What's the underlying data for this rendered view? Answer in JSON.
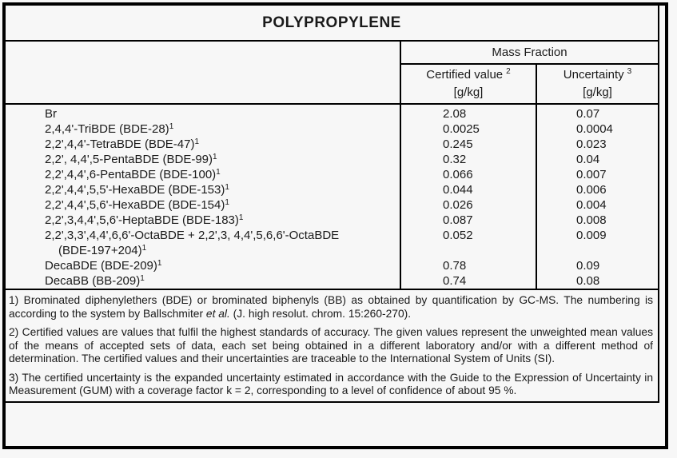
{
  "colors": {
    "background": "#f7f7f7",
    "line": "#000000",
    "text": "#1a1a1a"
  },
  "title": "POLYPROPYLENE",
  "table": {
    "group_header": "Mass Fraction",
    "columns": [
      {
        "label": "Certified value",
        "sup": "2",
        "unit": "[g/kg]"
      },
      {
        "label": "Uncertainty",
        "sup": "3",
        "unit": "[g/kg]"
      }
    ],
    "rows": [
      {
        "name": "Br",
        "sup": "",
        "certified": "2.08",
        "uncertainty": "0.07"
      },
      {
        "name": "2,4,4'-TriBDE (BDE-28)",
        "sup": "1",
        "certified": "0.0025",
        "uncertainty": "0.0004"
      },
      {
        "name": "2,2',4,4'-TetraBDE (BDE-47)",
        "sup": "1",
        "certified": "0.245",
        "uncertainty": "0.023"
      },
      {
        "name": "2,2', 4,4',5-PentaBDE (BDE-99)",
        "sup": "1",
        "certified": "0.32",
        "uncertainty": "0.04"
      },
      {
        "name": "2,2',4,4',6-PentaBDE (BDE-100)",
        "sup": "1",
        "certified": "0.066",
        "uncertainty": "0.007"
      },
      {
        "name": "2,2',4,4',5,5'-HexaBDE (BDE-153)",
        "sup": "1",
        "certified": "0.044",
        "uncertainty": "0.006"
      },
      {
        "name": "2,2',4,4',5,6'-HexaBDE (BDE-154)",
        "sup": "1",
        "certified": "0.026",
        "uncertainty": "0.004"
      },
      {
        "name": "2,2',3,4,4',5,6'-HeptaBDE (BDE-183)",
        "sup": "1",
        "certified": "0.087",
        "uncertainty": "0.008"
      },
      {
        "name": "2,2',3,3',4,4',6,6'-OctaBDE + 2,2',3, 4,4',5,6,6'-OctaBDE",
        "sup": "",
        "certified": "0.052",
        "uncertainty": "0.009"
      },
      {
        "name": "(BDE-197+204)",
        "sup": "1",
        "certified": "",
        "uncertainty": ""
      },
      {
        "name": "DecaBDE (BDE-209)",
        "sup": "1",
        "certified": "0.78",
        "uncertainty": "0.09"
      },
      {
        "name": "DecaBB (BB-209)",
        "sup": "1",
        "certified": "0.74",
        "uncertainty": "0.08"
      }
    ]
  },
  "footnotes": {
    "note1": {
      "pre": "1) Brominated diphenylethers (BDE) or brominated biphenyls (BB) as obtained by quantification by GC-MS. The numbering is according to the system by Ballschmiter ",
      "italic": "et al.",
      "post": " (J. high resolut. chrom. 15:260-270)."
    },
    "note2": "2) Certified values are values that fulfil the highest standards of accuracy. The given values represent the unweighted mean values of the means of accepted sets of data, each set being obtained in a different laboratory and/or with a different method of determination. The certified values and their uncertainties are traceable to the International System of Units (SI).",
    "note3": "3) The certified uncertainty is the expanded uncertainty estimated in accordance with the Guide to the Expression of Uncertainty in Measurement (GUM) with a coverage factor k = 2, corresponding to a level of confidence of about 95 %."
  }
}
